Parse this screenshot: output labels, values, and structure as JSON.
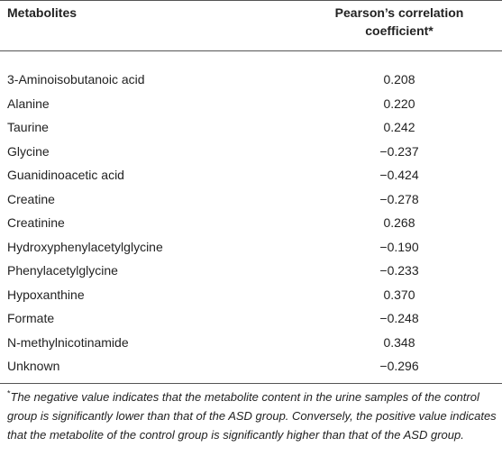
{
  "table": {
    "header": [
      "Metabolites",
      "Pearson’s correlation coefficient*"
    ],
    "rows": [
      [
        "3-Aminoisobutanoic acid",
        "0.208"
      ],
      [
        "Alanine",
        "0.220"
      ],
      [
        "Taurine",
        "0.242"
      ],
      [
        "Glycine",
        "−0.237"
      ],
      [
        "Guanidinoacetic acid",
        "−0.424"
      ],
      [
        "Creatine",
        "−0.278"
      ],
      [
        "Creatinine",
        "0.268"
      ],
      [
        "Hydroxyphenylacetylglycine",
        "−0.190"
      ],
      [
        "Phenylacetylglycine",
        "−0.233"
      ],
      [
        "Hypoxanthine",
        "0.370"
      ],
      [
        "Formate",
        "−0.248"
      ],
      [
        "N-methylnicotinamide",
        "0.348"
      ],
      [
        "Unknown",
        "−0.296"
      ]
    ]
  },
  "footnote": {
    "marker": "*",
    "text": "The negative value indicates that the metabolite content in the urine samples of the control group is significantly lower than that of the ASD group. Conversely, the positive value indicates that the metabolite of the control group is significantly higher than that of the ASD group."
  }
}
